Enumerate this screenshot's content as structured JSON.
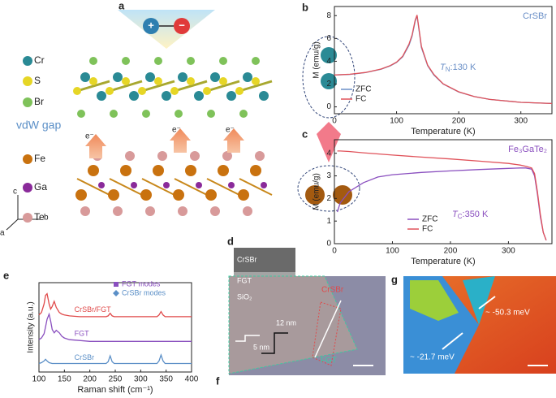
{
  "panel_labels": [
    "a",
    "b",
    "c",
    "d",
    "e",
    "f",
    "g"
  ],
  "panel_a": {
    "atoms_top": [
      "Cr",
      "S",
      "Br"
    ],
    "gap": "vdW gap",
    "electron": "e⁻",
    "atoms_bottom": [
      "Fe",
      "Ga",
      "Te"
    ],
    "axes": [
      "c",
      "b",
      "a"
    ]
  },
  "panel_d": {
    "layers": [
      "CrSBr",
      "FGT",
      "SiO₂"
    ]
  },
  "panel_f": {
    "labels": [
      "CrSBr",
      "12 nm",
      "5 nm",
      "FGT"
    ]
  },
  "panel_g": {
    "labels": [
      "~ -50.3 meV",
      "~ -21.7 meV"
    ]
  },
  "chart_data": [
    {
      "type": "line",
      "title": "CrSBr",
      "title_color": "#6a8fc7",
      "annotation": {
        "symbol": "T",
        "sub": "N",
        "rest": ":130 K"
      },
      "xlabel": "Temperature (K)",
      "ylabel": "M (emu/g)",
      "x": [
        0,
        25,
        50,
        75,
        90,
        100,
        110,
        120,
        125,
        130,
        133,
        136,
        140,
        150,
        160,
        175,
        200,
        225,
        250,
        300,
        350
      ],
      "series": [
        {
          "name": "ZFC",
          "color": "#6a8fc7",
          "values": [
            2.8,
            2.85,
            3.0,
            3.3,
            3.6,
            3.9,
            4.4,
            5.4,
            6.2,
            7.5,
            8.0,
            6.8,
            5.2,
            3.6,
            2.8,
            2.0,
            1.3,
            0.9,
            0.65,
            0.4,
            0.3
          ]
        },
        {
          "name": "FC",
          "color": "#e0525a",
          "values": [
            2.8,
            2.86,
            3.02,
            3.32,
            3.62,
            3.92,
            4.45,
            5.5,
            6.3,
            7.6,
            8.05,
            6.9,
            5.3,
            3.65,
            2.85,
            2.02,
            1.32,
            0.9,
            0.65,
            0.4,
            0.3
          ]
        }
      ],
      "xlim": [
        0,
        350
      ],
      "xticks": [
        0,
        100,
        200,
        300
      ],
      "ylim": [
        -0.6,
        8.8
      ],
      "yticks": [
        0,
        2,
        4,
        6,
        8
      ],
      "legend": "lower left"
    },
    {
      "type": "line",
      "title": "Fe₃GaTe₂",
      "title_color": "#8a4fbf",
      "annotation": {
        "symbol": "T",
        "sub": "C",
        "rest": ":350 K"
      },
      "xlabel": "Temperature (K)",
      "ylabel": "M (emu/g)",
      "x": [
        5,
        10,
        25,
        50,
        75,
        100,
        150,
        200,
        250,
        300,
        320,
        330,
        340,
        345,
        350,
        355,
        360,
        365
      ],
      "series": [
        {
          "name": "ZFC",
          "color": "#8a4fbf",
          "values": [
            1.4,
            1.8,
            2.3,
            2.7,
            2.95,
            3.05,
            3.15,
            3.22,
            3.28,
            3.33,
            3.35,
            3.35,
            3.3,
            3.0,
            2.2,
            1.2,
            0.5,
            0.15
          ]
        },
        {
          "name": "FC",
          "color": "#e0525a",
          "values": [
            4.1,
            4.1,
            4.08,
            4.02,
            3.97,
            3.92,
            3.83,
            3.75,
            3.65,
            3.55,
            3.48,
            3.42,
            3.35,
            3.1,
            2.3,
            1.3,
            0.5,
            0.15
          ]
        }
      ],
      "xlim": [
        0,
        375
      ],
      "xticks": [
        0,
        100,
        200,
        300
      ],
      "ylim": [
        0,
        4.6
      ],
      "yticks": [
        0,
        1,
        2,
        3,
        4
      ],
      "legend": "lower center"
    },
    {
      "type": "line",
      "xlabel": "Raman shift (cm⁻¹)",
      "ylabel": "Intensity (a.u.)",
      "x": [
        100,
        105,
        110,
        113,
        116,
        120,
        123,
        126,
        130,
        134,
        140,
        145,
        150,
        160,
        180,
        200,
        220,
        232,
        236,
        240,
        244,
        248,
        260,
        280,
        300,
        320,
        332,
        336,
        340,
        344,
        348,
        360,
        380,
        400
      ],
      "series": [
        {
          "name": "CrSBr/FGT",
          "color": "#e04a4a",
          "values": [
            6.7,
            7.0,
            8.0,
            9.0,
            9.2,
            8.0,
            7.4,
            7.7,
            8.3,
            7.6,
            7.0,
            6.8,
            6.7,
            6.6,
            6.5,
            6.5,
            6.5,
            6.5,
            6.6,
            6.9,
            6.6,
            6.5,
            6.5,
            6.5,
            6.5,
            6.5,
            6.5,
            6.7,
            7.1,
            6.7,
            6.5,
            6.5,
            6.5,
            6.5
          ]
        },
        {
          "name": "FGT",
          "color": "#8a4fbf",
          "values": [
            3.8,
            4.0,
            4.5,
            5.3,
            6.2,
            6.8,
            6.0,
            5.0,
            4.6,
            4.9,
            4.6,
            4.2,
            4.0,
            3.8,
            3.7,
            3.6,
            3.6,
            3.6,
            3.6,
            3.6,
            3.6,
            3.6,
            3.6,
            3.6,
            3.6,
            3.6,
            3.6,
            3.6,
            3.6,
            3.6,
            3.6,
            3.6,
            3.6,
            3.6
          ]
        },
        {
          "name": "CrSBr",
          "color": "#5b8fc7",
          "values": [
            1.0,
            1.1,
            1.3,
            1.5,
            1.3,
            1.1,
            1.05,
            1.0,
            1.0,
            1.0,
            1.0,
            1.0,
            1.0,
            1.0,
            1.0,
            1.0,
            1.0,
            1.0,
            1.2,
            1.9,
            1.2,
            1.0,
            1.0,
            1.0,
            1.0,
            1.0,
            1.0,
            1.3,
            2.0,
            1.3,
            1.0,
            1.0,
            1.0,
            1.0
          ]
        }
      ],
      "mode_legend": [
        {
          "name": "FGT modes",
          "color": "#8a4fbf",
          "shape": "square"
        },
        {
          "name": "CrSBr modes",
          "color": "#5b8fc7",
          "shape": "diamond"
        }
      ],
      "xlim": [
        100,
        400
      ],
      "xticks": [
        100,
        150,
        200,
        250,
        300,
        350,
        400
      ],
      "ylim": [
        0,
        10.5
      ]
    }
  ]
}
